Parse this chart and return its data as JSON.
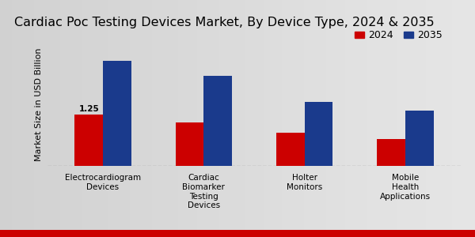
{
  "title": "Cardiac Poc Testing Devices Market, By Device Type, 2024 & 2035",
  "ylabel": "Market Size in USD Billion",
  "categories": [
    "Electrocardiogram\nDevices",
    "Cardiac\nBiomarker\nTesting\nDevices",
    "Holter\nMonitors",
    "Mobile\nHealth\nApplications"
  ],
  "values_2024": [
    1.25,
    1.05,
    0.8,
    0.65
  ],
  "values_2035": [
    2.55,
    2.2,
    1.55,
    1.35
  ],
  "color_2024": "#cc0000",
  "color_2035": "#1a3a8c",
  "annotation_text": "1.25",
  "annotation_bar": 0,
  "bar_width": 0.28,
  "ylim": [
    0,
    3.0
  ],
  "legend_labels": [
    "2024",
    "2035"
  ],
  "background_color_light": "#e8e8e8",
  "background_color_dark": "#c8c8c8",
  "title_fontsize": 11.5,
  "axis_label_fontsize": 8,
  "tick_fontsize": 7.5,
  "legend_fontsize": 9,
  "annotation_fontsize": 7.5,
  "bottom_bar_color": "#cc0000",
  "bottom_bar_height": 0.03
}
